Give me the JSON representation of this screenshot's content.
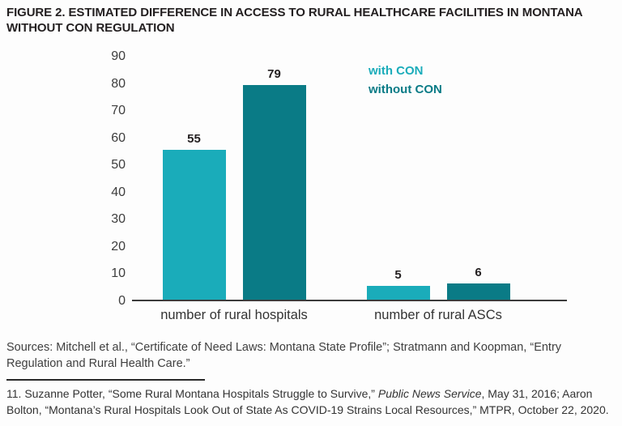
{
  "title": "FIGURE 2. ESTIMATED DIFFERENCE IN ACCESS TO RURAL HEALTHCARE FACILITIES IN MONTANA WITHOUT CON REGULATION",
  "colors": {
    "with_con": "#1aacba",
    "without_con": "#0a7b86",
    "axis_line": "#3c3c3c",
    "title_text": "#231f20"
  },
  "legend": {
    "items": [
      {
        "label": "with CON",
        "color": "#1aacba"
      },
      {
        "label": "without CON",
        "color": "#0a7b86"
      }
    ]
  },
  "chart_data": {
    "type": "bar",
    "categories": [
      "number of rural hospitals",
      "number of rural ASCs"
    ],
    "series": [
      {
        "name": "with CON",
        "color": "#1aacba",
        "values": [
          55,
          5
        ]
      },
      {
        "name": "without CON",
        "color": "#0a7b86",
        "values": [
          79,
          6
        ]
      }
    ],
    "value_labels": [
      [
        "55",
        "79"
      ],
      [
        "5",
        "6"
      ]
    ],
    "title": "FIGURE 2. ESTIMATED DIFFERENCE IN ACCESS TO RURAL HEALTHCARE FACILITIES IN MONTANA WITHOUT CON REGULATION",
    "xlabel": "",
    "ylabel": "",
    "ylim": [
      0,
      90
    ],
    "yticks": [
      "90",
      "80",
      "70",
      "60",
      "50",
      "40",
      "30",
      "20",
      "10",
      "0"
    ],
    "grid": false,
    "legend_position": "top-right"
  },
  "sources": "Sources: Mitchell et al., “Certificate of Need Laws: Montana State Profile”; Stratmann and Koopman, “Entry Regulation and Rural Health Care.”",
  "footnote": {
    "prefix": "11. Suzanne Potter, “Some Rural Montana Hospitals Struggle to Survive,” ",
    "italic": "Public News Service",
    "suffix": ", May 31, 2016; Aaron Bolton, “Montana’s Rural Hospitals Look Out of State As COVID-19 Strains Local Resources,” MTPR, October 22, 2020."
  }
}
